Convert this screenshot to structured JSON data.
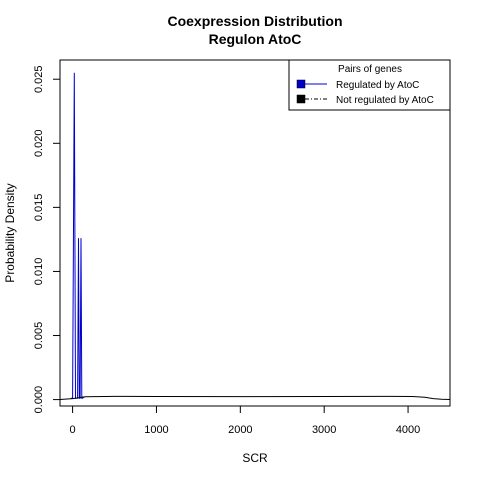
{
  "chart_data": {
    "type": "line",
    "title": "Coexpression Distribution",
    "subtitle": "Regulon AtoC",
    "xlabel": "SCR",
    "ylabel": "Probability Density",
    "xlim": [
      -150,
      4500
    ],
    "ylim": [
      -0.0005,
      0.0265
    ],
    "x_ticks": [
      0,
      1000,
      2000,
      3000,
      4000
    ],
    "x_tick_labels": [
      "0",
      "1000",
      "2000",
      "3000",
      "4000"
    ],
    "y_ticks": [
      0.0,
      0.005,
      0.01,
      0.015,
      0.02,
      0.025
    ],
    "y_tick_labels": [
      "0.000",
      "0.005",
      "0.010",
      "0.015",
      "0.020",
      "0.025"
    ],
    "grid": false,
    "legend": {
      "title": "Pairs of genes",
      "position": "top-right",
      "entries": [
        {
          "label": "Regulated by  AtoC",
          "color": "#0000cc",
          "line": "solid"
        },
        {
          "label": "Not regulated by  AtoC",
          "color": "#000000",
          "line": "dashdot"
        }
      ]
    },
    "series": [
      {
        "name": "Regulated by  AtoC",
        "color": "#0000cc",
        "x": [
          -20,
          0,
          10,
          20,
          35,
          45,
          60,
          70,
          80,
          90,
          100,
          110,
          120,
          135,
          150
        ],
        "y": [
          0.0001,
          0.0001,
          0.012,
          0.0255,
          0.0001,
          0.0001,
          0.0001,
          0.0126,
          0.0001,
          0.0001,
          0.0126,
          0.0001,
          0.0001,
          0.0002,
          0.0002
        ]
      },
      {
        "name": "Not regulated by  AtoC",
        "color": "#000000",
        "x": [
          -150,
          0,
          150,
          500,
          1000,
          2000,
          3000,
          3800,
          4050,
          4200,
          4300,
          4400,
          4500
        ],
        "y": [
          1e-05,
          8e-05,
          0.00022,
          0.00025,
          0.00024,
          0.00023,
          0.00024,
          0.00025,
          0.00024,
          0.00018,
          8e-05,
          2e-05,
          1e-05
        ]
      }
    ]
  }
}
